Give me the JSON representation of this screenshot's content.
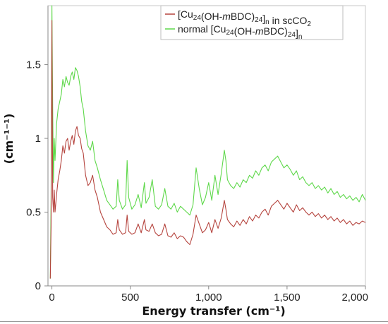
{
  "chart_data": {
    "type": "line",
    "title": "",
    "xlabel": "Energy transfer (cm⁻¹)",
    "ylabel": "(cm⁻¹⁻¹)",
    "xlim": [
      -25,
      2000
    ],
    "ylim": [
      0,
      1.9
    ],
    "xticks": [
      0,
      500,
      1000,
      1500,
      2000
    ],
    "xtick_labels": [
      "0",
      "500",
      "1,000",
      "1,500",
      "2,000"
    ],
    "yticks": [
      0,
      0.5,
      1,
      1.5
    ],
    "ytick_labels": [
      "0",
      "0.5",
      "1",
      "1.5"
    ],
    "grid": false,
    "legend_position": "top-right",
    "series": [
      {
        "name": "[Cu24(OH-mBDC)24]n in scCO2",
        "legend_parts": [
          {
            "t": "[Cu"
          },
          {
            "t": "24",
            "sub": true
          },
          {
            "t": "(OH-"
          },
          {
            "t": "m",
            "italic": true
          },
          {
            "t": "BDC)"
          },
          {
            "t": "24",
            "sub": true
          },
          {
            "t": "]"
          },
          {
            "t": "n",
            "sub": true
          },
          {
            "t": " in scCO"
          },
          {
            "t": "2",
            "sub": true
          }
        ],
        "color": "#b5443e",
        "x": [
          -10,
          -5,
          0,
          5,
          10,
          15,
          20,
          30,
          40,
          50,
          60,
          70,
          80,
          90,
          100,
          110,
          120,
          130,
          140,
          150,
          160,
          170,
          180,
          190,
          200,
          215,
          230,
          245,
          260,
          275,
          290,
          310,
          330,
          350,
          370,
          390,
          410,
          420,
          430,
          450,
          470,
          480,
          490,
          510,
          530,
          550,
          570,
          590,
          600,
          620,
          640,
          660,
          680,
          700,
          720,
          740,
          760,
          780,
          800,
          820,
          840,
          860,
          880,
          900,
          920,
          940,
          960,
          980,
          1000,
          1020,
          1040,
          1060,
          1080,
          1100,
          1110,
          1120,
          1140,
          1160,
          1180,
          1200,
          1220,
          1240,
          1260,
          1280,
          1300,
          1320,
          1340,
          1360,
          1380,
          1400,
          1420,
          1440,
          1460,
          1480,
          1500,
          1520,
          1540,
          1560,
          1580,
          1600,
          1620,
          1640,
          1660,
          1680,
          1700,
          1720,
          1740,
          1760,
          1780,
          1800,
          1820,
          1840,
          1860,
          1880,
          1900,
          1920,
          1940,
          1960,
          1980,
          2000
        ],
        "y": [
          0.05,
          0.4,
          1.8,
          0.6,
          0.5,
          0.65,
          0.5,
          0.62,
          0.72,
          0.78,
          0.85,
          0.95,
          0.9,
          0.98,
          1.0,
          0.92,
          0.98,
          1.02,
          0.96,
          1.05,
          1.08,
          1.02,
          1.0,
          0.93,
          0.9,
          0.75,
          0.68,
          0.7,
          0.75,
          0.65,
          0.6,
          0.5,
          0.45,
          0.4,
          0.38,
          0.35,
          0.36,
          0.45,
          0.38,
          0.35,
          0.36,
          0.48,
          0.37,
          0.35,
          0.36,
          0.42,
          0.36,
          0.45,
          0.38,
          0.37,
          0.42,
          0.36,
          0.34,
          0.35,
          0.42,
          0.34,
          0.33,
          0.36,
          0.32,
          0.34,
          0.33,
          0.3,
          0.28,
          0.35,
          0.48,
          0.42,
          0.36,
          0.38,
          0.43,
          0.36,
          0.45,
          0.39,
          0.46,
          0.58,
          0.52,
          0.45,
          0.42,
          0.4,
          0.44,
          0.41,
          0.45,
          0.42,
          0.47,
          0.44,
          0.48,
          0.46,
          0.5,
          0.52,
          0.48,
          0.54,
          0.56,
          0.58,
          0.55,
          0.52,
          0.56,
          0.53,
          0.5,
          0.55,
          0.51,
          0.53,
          0.5,
          0.48,
          0.5,
          0.47,
          0.49,
          0.46,
          0.48,
          0.45,
          0.47,
          0.44,
          0.46,
          0.43,
          0.45,
          0.42,
          0.44,
          0.41,
          0.43,
          0.42,
          0.44,
          0.43
        ]
      },
      {
        "name": "normal [Cu24(OH-mBDC)24]n",
        "legend_parts": [
          {
            "t": "normal [Cu"
          },
          {
            "t": "24",
            "sub": true
          },
          {
            "t": "(OH-"
          },
          {
            "t": "m",
            "italic": true
          },
          {
            "t": "BDC)"
          },
          {
            "t": "24",
            "sub": true
          },
          {
            "t": "]"
          },
          {
            "t": "n",
            "sub": true
          }
        ],
        "color": "#5ed84a",
        "x": [
          -10,
          -5,
          0,
          5,
          10,
          15,
          20,
          30,
          40,
          50,
          60,
          70,
          80,
          90,
          100,
          110,
          120,
          130,
          140,
          150,
          160,
          170,
          180,
          190,
          200,
          215,
          230,
          245,
          260,
          275,
          290,
          310,
          330,
          350,
          370,
          390,
          410,
          420,
          430,
          450,
          470,
          480,
          490,
          510,
          530,
          550,
          570,
          590,
          600,
          620,
          640,
          660,
          680,
          700,
          720,
          740,
          760,
          780,
          800,
          820,
          840,
          860,
          880,
          900,
          920,
          940,
          960,
          980,
          1000,
          1020,
          1040,
          1060,
          1080,
          1100,
          1110,
          1120,
          1140,
          1160,
          1180,
          1200,
          1220,
          1240,
          1260,
          1280,
          1300,
          1320,
          1340,
          1360,
          1380,
          1400,
          1420,
          1440,
          1460,
          1480,
          1500,
          1520,
          1540,
          1560,
          1580,
          1600,
          1620,
          1640,
          1660,
          1680,
          1700,
          1720,
          1740,
          1760,
          1780,
          1800,
          1820,
          1840,
          1860,
          1880,
          1900,
          1920,
          1940,
          1960,
          1980,
          2000
        ],
        "y": [
          0.05,
          0.6,
          1.9,
          1.2,
          0.7,
          1.0,
          0.85,
          1.1,
          1.2,
          1.25,
          1.3,
          1.4,
          1.35,
          1.42,
          1.38,
          1.36,
          1.42,
          1.45,
          1.4,
          1.48,
          1.46,
          1.42,
          1.35,
          1.25,
          1.2,
          1.05,
          0.95,
          0.92,
          0.98,
          0.85,
          0.8,
          0.72,
          0.65,
          0.58,
          0.55,
          0.52,
          0.54,
          0.72,
          0.58,
          0.52,
          0.55,
          0.85,
          0.6,
          0.52,
          0.55,
          0.62,
          0.53,
          0.7,
          0.56,
          0.6,
          0.72,
          0.54,
          0.52,
          0.55,
          0.66,
          0.54,
          0.52,
          0.56,
          0.5,
          0.54,
          0.52,
          0.5,
          0.48,
          0.55,
          0.8,
          0.66,
          0.55,
          0.6,
          0.7,
          0.58,
          0.75,
          0.62,
          0.76,
          0.92,
          0.85,
          0.72,
          0.68,
          0.66,
          0.7,
          0.67,
          0.72,
          0.7,
          0.75,
          0.73,
          0.78,
          0.75,
          0.8,
          0.82,
          0.78,
          0.84,
          0.86,
          0.88,
          0.84,
          0.8,
          0.82,
          0.79,
          0.75,
          0.78,
          0.72,
          0.74,
          0.7,
          0.68,
          0.7,
          0.66,
          0.68,
          0.65,
          0.67,
          0.63,
          0.66,
          0.62,
          0.64,
          0.6,
          0.62,
          0.59,
          0.61,
          0.58,
          0.6,
          0.57,
          0.62,
          0.58
        ]
      }
    ]
  }
}
